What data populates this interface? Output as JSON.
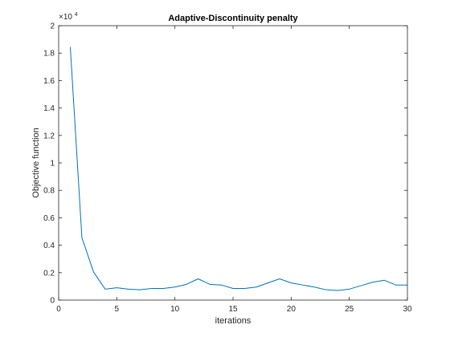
{
  "chart_data": {
    "type": "line",
    "title": "Adaptive-Discontinuity penalty",
    "xlabel": "iterations",
    "ylabel": "Objective function",
    "y_exponent_label": "×10",
    "y_exponent_power": "4",
    "xlim": [
      0,
      30
    ],
    "ylim": [
      0,
      20000
    ],
    "x_ticks": [
      0,
      5,
      10,
      15,
      20,
      25,
      30
    ],
    "x_tick_labels": [
      "0",
      "5",
      "10",
      "15",
      "20",
      "25",
      "30"
    ],
    "y_ticks": [
      0,
      2000,
      4000,
      6000,
      8000,
      10000,
      12000,
      14000,
      16000,
      18000,
      20000
    ],
    "y_tick_labels": [
      "0",
      "0.2",
      "0.4",
      "0.6",
      "0.8",
      "1",
      "1.2",
      "1.4",
      "1.6",
      "1.8",
      "2"
    ],
    "grid": false,
    "series": [
      {
        "color": "#0072bd",
        "x": [
          1,
          2,
          3,
          4,
          5,
          6,
          7,
          8,
          9,
          10,
          11,
          12,
          13,
          14,
          15,
          16,
          17,
          18,
          19,
          20,
          21,
          22,
          23,
          24,
          25,
          26,
          27,
          28,
          29,
          30
        ],
        "y": [
          18450,
          4550,
          2050,
          800,
          900,
          800,
          750,
          850,
          850,
          950,
          1150,
          1550,
          1150,
          1100,
          850,
          850,
          950,
          1250,
          1550,
          1250,
          1100,
          950,
          750,
          700,
          800,
          1050,
          1300,
          1450,
          1100,
          1100
        ]
      }
    ]
  }
}
